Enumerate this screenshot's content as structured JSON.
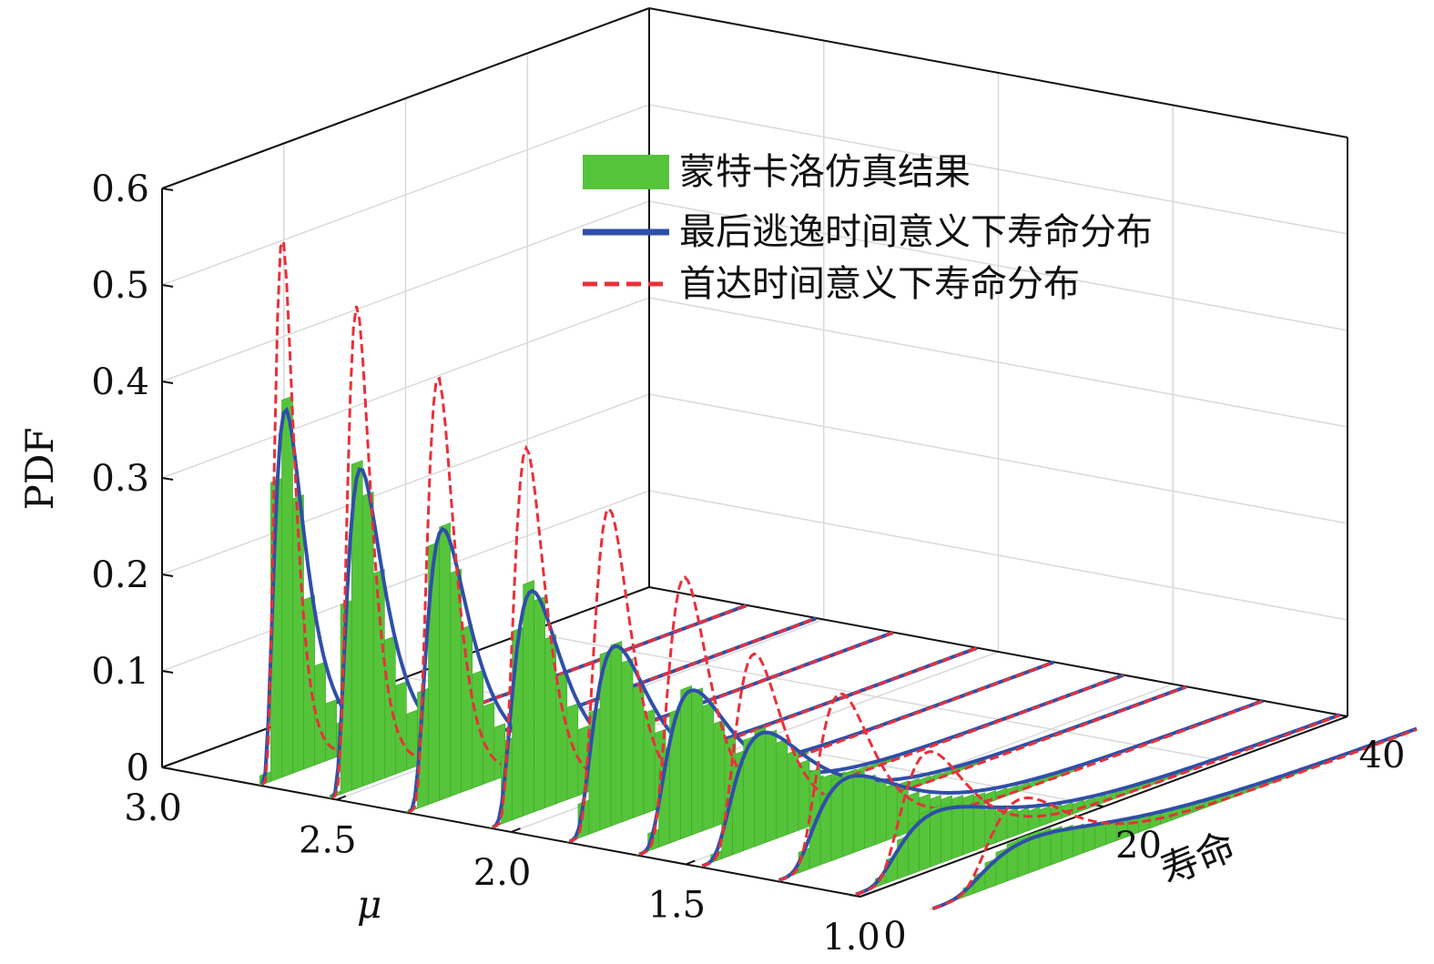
{
  "chart_data": {
    "type": "3d-histogram-waterfall",
    "zlabel": "PDF",
    "xlabel": "μ",
    "ylabel": "寿命",
    "z_ticks": [
      "0",
      "0.1",
      "0.2",
      "0.3",
      "0.4",
      "0.5",
      "0.6"
    ],
    "z_tick_values": [
      0,
      0.1,
      0.2,
      0.3,
      0.4,
      0.5,
      0.6
    ],
    "zlim": [
      0,
      0.6
    ],
    "mu_ticks": [
      "3.0",
      "2.5",
      "2.0",
      "1.5",
      "1.0"
    ],
    "mu_tick_values": [
      3.0,
      2.5,
      2.0,
      1.5,
      1.0
    ],
    "mu_range": [
      3.0,
      1.0
    ],
    "life_ticks": [
      "0",
      "20",
      "40"
    ],
    "life_tick_values": [
      0,
      20,
      40
    ],
    "life_range": [
      0,
      40
    ],
    "grid": true,
    "legend_position": "top-right",
    "colors": {
      "histogram": "#55c43a",
      "last_exit": "#2f4fa8",
      "first_passage": "#e8303a",
      "axis": "#111111",
      "grid": "#d9d9d9"
    },
    "legend": [
      {
        "key": "histogram",
        "label": "蒙特卡洛仿真结果",
        "style": "bar"
      },
      {
        "key": "last_exit",
        "label": "最后逃逸时间意义下寿命分布",
        "style": "solid"
      },
      {
        "key": "first_passage",
        "label": "首达时间意义下寿命分布",
        "style": "dashed"
      }
    ],
    "mu_series": [
      2.72,
      2.52,
      2.3,
      2.06,
      1.84,
      1.64,
      1.46,
      1.24,
      1.02,
      0.8
    ],
    "first_passage_peaks": [
      0.56,
      0.5,
      0.44,
      0.38,
      0.33,
      0.27,
      0.2,
      0.17,
      0.12,
      0.08
    ],
    "last_exit_peaks": [
      0.38,
      0.33,
      0.28,
      0.23,
      0.185,
      0.15,
      0.115,
      0.08,
      0.055,
      0.035
    ],
    "histogram_peaks": [
      0.4,
      0.34,
      0.29,
      0.24,
      0.19,
      0.155,
      0.12,
      0.085,
      0.06,
      0.04
    ],
    "peak_life": [
      2.0,
      2.4,
      2.8,
      3.2,
      3.7,
      4.2,
      4.8,
      5.6,
      6.6,
      8.0
    ]
  }
}
